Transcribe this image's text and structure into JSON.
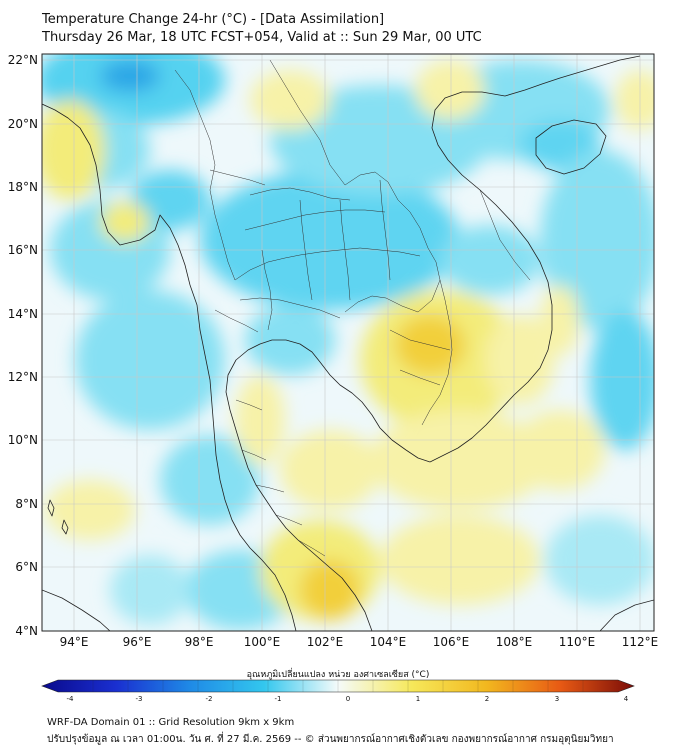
{
  "title": {
    "line1": "Temperature Change 24-hr (°C) - [Data Assimilation]",
    "line2": "Thursday 26 Mar, 18 UTC FCST+054, Valid at :: Sun 29 Mar, 00 UTC"
  },
  "map": {
    "lat_labels": [
      "22°N",
      "20°N",
      "18°N",
      "16°N",
      "14°N",
      "12°N",
      "10°N",
      "8°N",
      "6°N",
      "4°N"
    ],
    "lon_labels": [
      "94°E",
      "96°E",
      "98°E",
      "100°E",
      "102°E",
      "104°E",
      "106°E",
      "108°E",
      "110°E",
      "112°E"
    ],
    "lat_range": [
      4,
      22
    ],
    "lon_range": [
      93,
      112.5
    ],
    "gridlines": true
  },
  "colorbar": {
    "title": "อุณหภูมิเปลี่ยนแปลง หน่วย องศาเซลเซียส (°C)",
    "ticks": [
      "-4",
      "-3",
      "-2",
      "-1",
      "0",
      "1",
      "2",
      "3",
      "4"
    ],
    "range": [
      -4,
      4
    ],
    "colors": {
      "cold_extreme": "#0a0a8c",
      "cold": "#1560d8",
      "cool": "#33c7ee",
      "neutral": "#f5fbfa",
      "warm": "#f6e85a",
      "hot": "#f07820",
      "hot_extreme": "#7a0c08"
    }
  },
  "footer": {
    "line1": "WRF-DA Domain 01 :: Grid Resolution 9km x 9km",
    "line2": "ปรับปรุงข้อมูล ณ เวลา 01:00น. วัน ศ. ที่ 27 มี.ค. 2569 -- © ส่วนพยากรณ์อากาศเชิงตัวเลข กองพยากรณ์อากาศ กรมอุตุนิยมวิทยา"
  }
}
